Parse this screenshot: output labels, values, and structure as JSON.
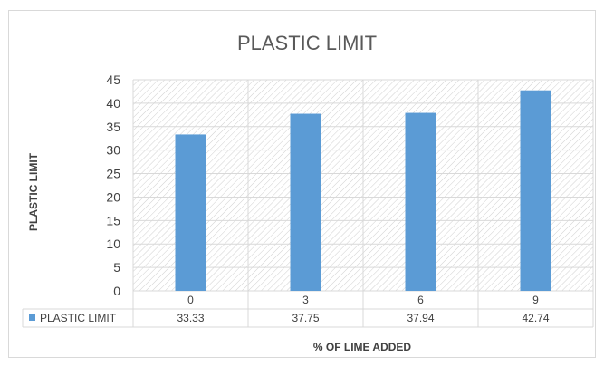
{
  "chart_data": {
    "type": "bar",
    "title": "PLASTIC LIMIT",
    "xlabel": "% OF LIME ADDED",
    "ylabel": "PLASTIC LIMIT",
    "categories": [
      "0",
      "3",
      "6",
      "9"
    ],
    "series": [
      {
        "name": "PLASTIC LIMIT",
        "values": [
          33.33,
          37.75,
          37.94,
          42.74
        ],
        "display": [
          "33.33",
          "37.75",
          "37.94",
          "42.74"
        ]
      }
    ],
    "ylim": [
      0,
      45
    ],
    "yticks": [
      "0",
      "5",
      "10",
      "15",
      "20",
      "25",
      "30",
      "35",
      "40",
      "45"
    ],
    "grid": true,
    "legend": "data-table",
    "colors": {
      "bar": "#5b9bd5",
      "grid": "#d9d9d9",
      "text": "#404040",
      "title": "#595959",
      "hatch": "#d0d0d0"
    }
  }
}
